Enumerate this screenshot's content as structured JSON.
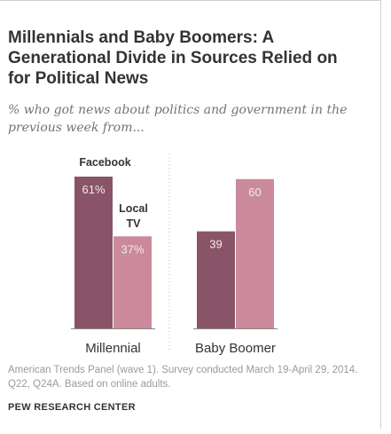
{
  "header": {
    "title": "Millennials and Baby Boomers: A Generational Divide in Sources Relied on for Political News",
    "subtitle": "% who got news about politics and government in the previous week from..."
  },
  "chart_data": {
    "type": "bar",
    "categories": [
      "Millennial",
      "Baby Boomer"
    ],
    "series": [
      {
        "name": "Facebook",
        "values": [
          61,
          39
        ],
        "color": "#8a5468"
      },
      {
        "name": "Local TV",
        "values": [
          37,
          60
        ],
        "color": "#ca8a9c"
      }
    ],
    "value_labels": [
      [
        "61%",
        "39"
      ],
      [
        "37%",
        "60"
      ]
    ],
    "legend_labels": {
      "Facebook": [
        "Facebook"
      ],
      "Local TV": [
        "Local",
        "TV"
      ]
    },
    "ylim": [
      0,
      70
    ],
    "grid": false,
    "separator": "dotted vertical line between groups"
  },
  "footer": {
    "note": "American Trends Panel (wave 1). Survey conducted March 19-April 29, 2014. Q22, Q24A. Based on online adults.",
    "source": "PEW RESEARCH CENTER"
  },
  "colors": {
    "facebook": "#8a5468",
    "local_tv": "#ca8a9c",
    "label_on_bar": "#f3e8ec",
    "axis": "#888888"
  }
}
